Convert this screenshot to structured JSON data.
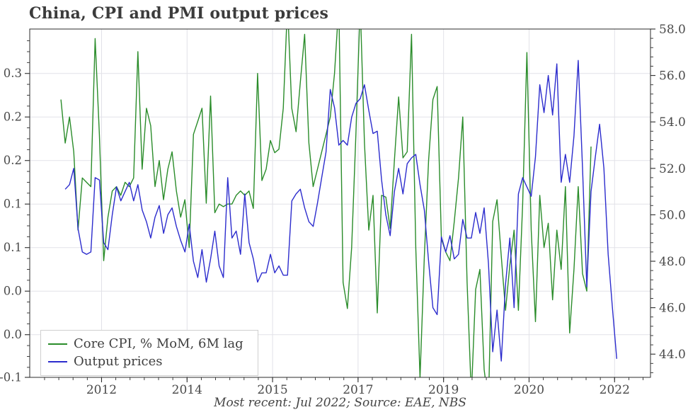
{
  "figure": {
    "title": "China, CPI and PMI output prices",
    "footer": "Most recent: Jul 2022; Source: EAE, NBS"
  },
  "legend": {
    "items": [
      {
        "label": "Core CPI, % MoM, 6M lag",
        "color": "#2a8c2a"
      },
      {
        "label": "Output prices",
        "color": "#2c2ccd"
      }
    ]
  },
  "colors": {
    "green_line": "#2a8c2a",
    "blue_line": "#2c2ccd",
    "gridline": "#e2e2e8",
    "spine": "#2b2b2b",
    "tick_label": "#4a4a4a",
    "title": "#3b3b3b",
    "footer": "#444444",
    "background": "#ffffff"
  },
  "chart_data": {
    "type": "line",
    "title": "China, CPI and PMI output prices",
    "annotation": "Most recent: Jul 2022; Source: EAE, NBS",
    "grid": true,
    "legend_position": "lower left",
    "x_axis": {
      "unit": "date (monthly)",
      "xlim": [
        2011.1,
        2023.2
      ],
      "tick_positions": [
        2012.5,
        2014.1667,
        2015.8333,
        2017.5,
        2019.1667,
        2020.8333,
        2022.5
      ],
      "tick_labels": [
        "2012",
        "2014",
        "2015",
        "2017",
        "2019",
        "2020",
        "2022"
      ],
      "minor_divisions_per_interval": 6
    },
    "left_axis": {
      "ylim": [
        -0.049,
        0.351
      ],
      "tick_values": [
        0.3,
        0.25,
        0.2,
        0.15,
        0.1,
        0.05,
        0.0,
        -0.05
      ],
      "tick_labels": [
        "0.3",
        "0.2",
        "0.2",
        "0.1",
        "0.1",
        "0.0",
        "0.0",
        "-0.1"
      ],
      "minor_step": 0.0125,
      "applies_to": "Core CPI, % MoM, 6M lag"
    },
    "right_axis": {
      "ylim": [
        43.0,
        58.0
      ],
      "tick_values": [
        58,
        56,
        54,
        52,
        50,
        48,
        46,
        44
      ],
      "tick_labels": [
        "58.0",
        "56.0",
        "54.0",
        "52.0",
        "50.0",
        "48.0",
        "46.0",
        "44.0"
      ],
      "minor_step": 0.4,
      "applies_to": "Output prices"
    },
    "series": [
      {
        "name": "Core CPI, % MoM, 6M lag",
        "axis": "left",
        "color": "#2a8c2a",
        "frequency": "monthly",
        "start": "2011-09",
        "start_t": 2011.7083,
        "values": [
          0.27,
          0.22,
          0.25,
          0.21,
          0.12,
          0.18,
          0.175,
          0.17,
          0.34,
          0.23,
          0.085,
          0.135,
          0.165,
          0.17,
          0.16,
          0.175,
          0.17,
          0.18,
          0.325,
          0.19,
          0.26,
          0.24,
          0.17,
          0.2,
          0.155,
          0.19,
          0.21,
          0.165,
          0.135,
          0.155,
          0.1,
          0.23,
          0.245,
          0.26,
          0.151,
          0.274,
          0.14,
          0.15,
          0.147,
          0.15,
          0.15,
          0.16,
          0.165,
          0.16,
          0.165,
          0.145,
          0.3,
          0.177,
          0.19,
          0.223,
          0.209,
          0.213,
          0.26,
          0.38,
          0.26,
          0.233,
          0.29,
          0.345,
          0.22,
          0.17,
          0.19,
          0.21,
          0.23,
          0.25,
          0.3,
          0.38,
          0.06,
          0.03,
          0.1,
          0.23,
          0.38,
          0.22,
          0.12,
          0.16,
          0.025,
          0.16,
          0.158,
          0.122,
          0.2,
          0.273,
          0.203,
          0.21,
          0.345,
          0.1,
          -0.05,
          0.09,
          0.2,
          0.27,
          0.285,
          0.11,
          0.095,
          0.085,
          0.13,
          0.18,
          0.25,
          0.06,
          -0.07,
          0.052,
          0.075,
          -0.04,
          -0.08,
          0.13,
          0.155,
          0.09,
          0.028,
          0.08,
          0.12,
          0.028,
          0.15,
          0.324,
          0.12,
          0.015,
          0.16,
          0.1,
          0.128,
          0.04,
          0.12,
          0.075,
          0.17,
          0.002,
          0.075,
          0.17,
          0.07,
          0.05,
          0.216
        ]
      },
      {
        "name": "Output prices",
        "axis": "right",
        "color": "#2c2ccd",
        "frequency": "monthly",
        "start": "2011-10",
        "start_t": 2011.7917,
        "values": [
          51.1,
          51.3,
          52.0,
          49.4,
          48.4,
          48.3,
          48.4,
          51.6,
          51.5,
          48.8,
          48.5,
          50.0,
          51.2,
          50.6,
          51.0,
          51.4,
          50.6,
          51.3,
          50.2,
          49.7,
          49.0,
          49.9,
          50.4,
          49.2,
          50.0,
          50.3,
          49.5,
          48.9,
          48.4,
          49.6,
          48.0,
          47.3,
          48.5,
          47.1,
          48.1,
          49.3,
          47.8,
          47.3,
          51.6,
          49.0,
          49.3,
          48.3,
          50.9,
          48.8,
          48.1,
          47.1,
          47.5,
          47.5,
          48.3,
          47.5,
          47.8,
          47.4,
          47.4,
          50.6,
          50.9,
          51.1,
          50.3,
          49.7,
          49.5,
          50.5,
          51.6,
          52.7,
          55.4,
          54.6,
          53.0,
          53.2,
          53.0,
          54.2,
          54.8,
          55.0,
          55.6,
          54.5,
          53.5,
          53.6,
          51.5,
          50.0,
          49.1,
          51.0,
          52.0,
          50.9,
          52.2,
          52.45,
          52.6,
          51.3,
          50.2,
          48.0,
          46.0,
          45.7,
          49.05,
          48.4,
          49.1,
          48.1,
          48.3,
          49.8,
          49.0,
          49.0,
          50.1,
          49.2,
          50.3,
          47.9,
          44.1,
          45.9,
          43.7,
          47.0,
          49.0,
          46.0,
          50.9,
          51.6,
          51.2,
          50.8,
          52.5,
          55.6,
          54.4,
          56.0,
          54.3,
          56.5,
          51.4,
          52.6,
          51.4,
          53.4,
          56.65,
          52.0,
          46.9,
          51.0,
          52.5,
          53.9,
          52.0,
          48.3,
          46.0,
          43.8
        ]
      }
    ]
  }
}
